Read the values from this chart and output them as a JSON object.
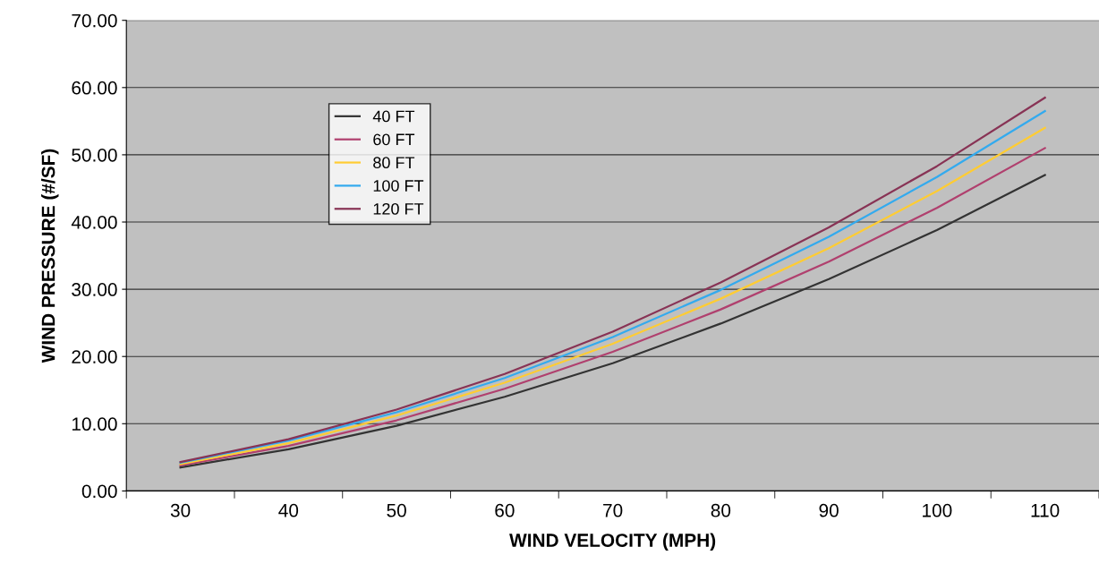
{
  "chart_data": {
    "type": "line",
    "xlabel": "WIND VELOCITY (MPH)",
    "ylabel": "WIND PRESSURE (#/SF)",
    "categories": [
      "30",
      "40",
      "50",
      "60",
      "70",
      "80",
      "90",
      "100",
      "110"
    ],
    "series": [
      {
        "name": "40 FT",
        "color": "#333333",
        "values": [
          3.5,
          6.2,
          9.7,
          14.0,
          19.0,
          24.9,
          31.5,
          38.8,
          47.0
        ]
      },
      {
        "name": "60 FT",
        "color": "#b0406e",
        "values": [
          3.8,
          6.7,
          10.5,
          15.2,
          20.7,
          27.0,
          34.1,
          42.1,
          51.0
        ]
      },
      {
        "name": "80 FT",
        "color": "#ffcc33",
        "values": [
          4.0,
          7.1,
          11.2,
          16.1,
          21.9,
          28.6,
          36.1,
          44.6,
          54.0
        ]
      },
      {
        "name": "100 FT",
        "color": "#33aaee",
        "values": [
          4.2,
          7.5,
          11.7,
          16.8,
          22.9,
          29.9,
          37.8,
          46.7,
          56.5
        ]
      },
      {
        "name": "120 FT",
        "color": "#883355",
        "values": [
          4.3,
          7.7,
          12.1,
          17.4,
          23.7,
          31.0,
          39.2,
          48.3,
          58.5
        ]
      }
    ],
    "ylim": [
      0,
      70
    ],
    "yticks": [
      {
        "value": 0,
        "label": "0.00"
      },
      {
        "value": 10,
        "label": "10.00"
      },
      {
        "value": 20,
        "label": "20.00"
      },
      {
        "value": 30,
        "label": "30.00"
      },
      {
        "value": 40,
        "label": "40.00"
      },
      {
        "value": 50,
        "label": "50.00"
      },
      {
        "value": 60,
        "label": "60.00"
      },
      {
        "value": 70,
        "label": "70.00"
      }
    ],
    "grid": "y",
    "legend": "top left",
    "marker": "none",
    "line_style": "solid"
  }
}
